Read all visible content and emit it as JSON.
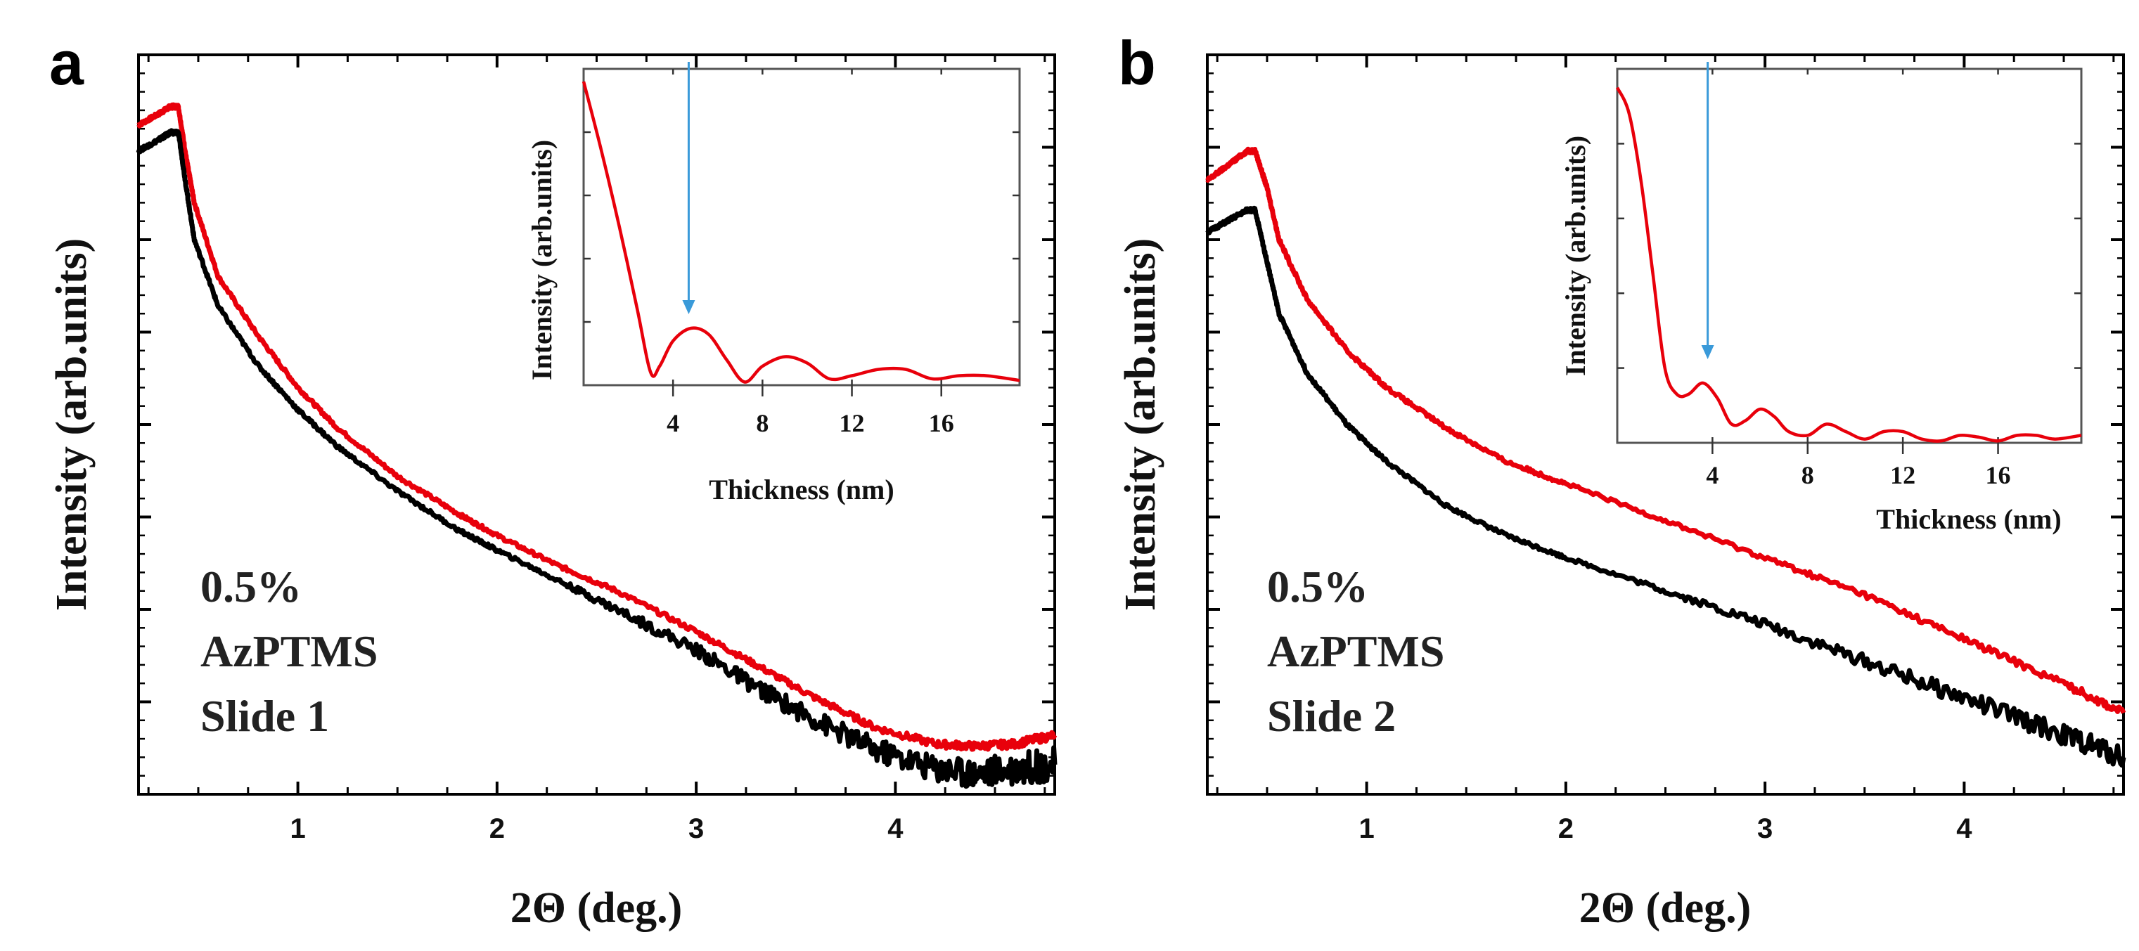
{
  "chart_data": [
    {
      "type": "line",
      "panel_label": "a",
      "title": "",
      "xlabel": "2Θ (deg.)",
      "ylabel": "Intensity (arb.units)",
      "xlim": [
        0.2,
        4.8
      ],
      "ylim": [
        0,
        100
      ],
      "xticks": [
        1,
        2,
        3,
        4
      ],
      "yticks_labeled": false,
      "annotation": [
        "0.5%",
        "AzPTMS",
        "Slide 1"
      ],
      "series": [
        {
          "name": "red",
          "color": "#e8000b",
          "x": [
            0.2,
            0.3,
            0.36,
            0.4,
            0.44,
            0.48,
            0.6,
            0.8,
            1.0,
            1.2,
            1.5,
            1.8,
            2.0,
            2.3,
            2.6,
            3.0,
            3.3,
            3.6,
            3.9,
            4.2,
            4.4,
            4.6,
            4.8
          ],
          "y": [
            90.5,
            92.0,
            93.0,
            93.0,
            86.0,
            80.0,
            70.0,
            62.0,
            55.0,
            49.5,
            43.0,
            38.0,
            35.0,
            31.0,
            27.5,
            22.0,
            17.5,
            13.0,
            9.0,
            6.8,
            6.5,
            6.8,
            8.0
          ]
        },
        {
          "name": "black",
          "color": "#000000",
          "x": [
            0.2,
            0.3,
            0.36,
            0.4,
            0.44,
            0.48,
            0.6,
            0.8,
            1.0,
            1.2,
            1.5,
            1.8,
            2.0,
            2.3,
            2.6,
            3.0,
            3.3,
            3.6,
            3.9,
            4.2,
            4.4,
            4.6,
            4.8
          ],
          "y": [
            87.0,
            88.5,
            89.5,
            89.5,
            82.0,
            75.0,
            66.0,
            58.0,
            52.0,
            47.0,
            41.0,
            35.8,
            33.0,
            29.0,
            25.0,
            19.5,
            14.5,
            10.0,
            6.0,
            3.5,
            2.8,
            3.5,
            4.0
          ]
        }
      ],
      "inset": {
        "xlabel": "Thickness (nm)",
        "ylabel": "Intensity (arb.units)",
        "xlim": [
          0,
          19.5
        ],
        "ylim": [
          0,
          100
        ],
        "xticks": [
          4,
          8,
          12,
          16
        ],
        "arrow_at_x": 4.7,
        "series": [
          {
            "name": "red",
            "color": "#e8000b",
            "x": [
              0,
              0.8,
              1.6,
              2.4,
              3.0,
              3.4,
              4.0,
              4.8,
              5.6,
              6.4,
              7.2,
              8.0,
              9.0,
              10.0,
              11.0,
              12.0,
              13.2,
              14.4,
              15.6,
              16.8,
              18.0,
              19.5
            ],
            "y": [
              96,
              74,
              50,
              24,
              4,
              6,
              14,
              18,
              16,
              8,
              1,
              6,
              9,
              7,
              2,
              3,
              5,
              5,
              2,
              3,
              3,
              1.5
            ]
          }
        ]
      }
    },
    {
      "type": "line",
      "panel_label": "b",
      "title": "",
      "xlabel": "2Θ (deg.)",
      "ylabel": "Intensity (arb.units)",
      "xlim": [
        0.2,
        4.8
      ],
      "ylim": [
        0,
        100
      ],
      "xticks": [
        1,
        2,
        3,
        4
      ],
      "yticks_labeled": false,
      "annotation": [
        "0.5%",
        "AzPTMS",
        "Slide 2"
      ],
      "series": [
        {
          "name": "red",
          "color": "#e8000b",
          "x": [
            0.2,
            0.3,
            0.4,
            0.44,
            0.5,
            0.56,
            0.7,
            0.9,
            1.1,
            1.4,
            1.7,
            2.0,
            2.5,
            3.0,
            3.5,
            4.0,
            4.5,
            4.8
          ],
          "y": [
            83.0,
            85.0,
            87.0,
            87.0,
            82.0,
            75.0,
            67.0,
            60.0,
            55.0,
            49.5,
            45.0,
            42.0,
            37.0,
            32.0,
            27.0,
            21.0,
            15.0,
            11.0
          ]
        },
        {
          "name": "black",
          "color": "#000000",
          "x": [
            0.2,
            0.3,
            0.4,
            0.44,
            0.5,
            0.56,
            0.7,
            0.9,
            1.1,
            1.4,
            1.7,
            2.0,
            2.5,
            3.0,
            3.5,
            4.0,
            4.5,
            4.8
          ],
          "y": [
            76.0,
            77.5,
            79.0,
            79.0,
            72.0,
            65.0,
            57.0,
            50.0,
            45.0,
            39.0,
            35.0,
            32.0,
            27.5,
            23.0,
            18.0,
            13.0,
            8.0,
            5.0
          ]
        }
      ],
      "inset": {
        "xlabel": "Thickness (nm)",
        "ylabel": "Intensity (arb.units)",
        "xlim": [
          0,
          19.5
        ],
        "ylim": [
          0,
          100
        ],
        "xticks": [
          4,
          8,
          12,
          16
        ],
        "arrow_at_x": 3.8,
        "series": [
          {
            "name": "red",
            "color": "#e8000b",
            "x": [
              0,
              0.5,
              1.0,
              1.5,
              2.0,
              2.5,
              3.0,
              3.6,
              4.2,
              4.8,
              5.4,
              6.0,
              6.6,
              7.2,
              8.0,
              8.8,
              9.6,
              10.4,
              11.2,
              12.0,
              12.8,
              13.6,
              14.4,
              15.2,
              16.0,
              16.8,
              17.6,
              18.4,
              19.5
            ],
            "y": [
              95,
              88,
              70,
              45,
              20,
              13,
              13,
              16,
              12,
              5,
              6,
              9,
              7,
              3,
              2,
              5,
              3,
              1,
              3,
              3,
              1,
              0.5,
              2,
              1.5,
              0.5,
              2,
              2,
              1,
              2
            ]
          }
        ]
      }
    }
  ]
}
